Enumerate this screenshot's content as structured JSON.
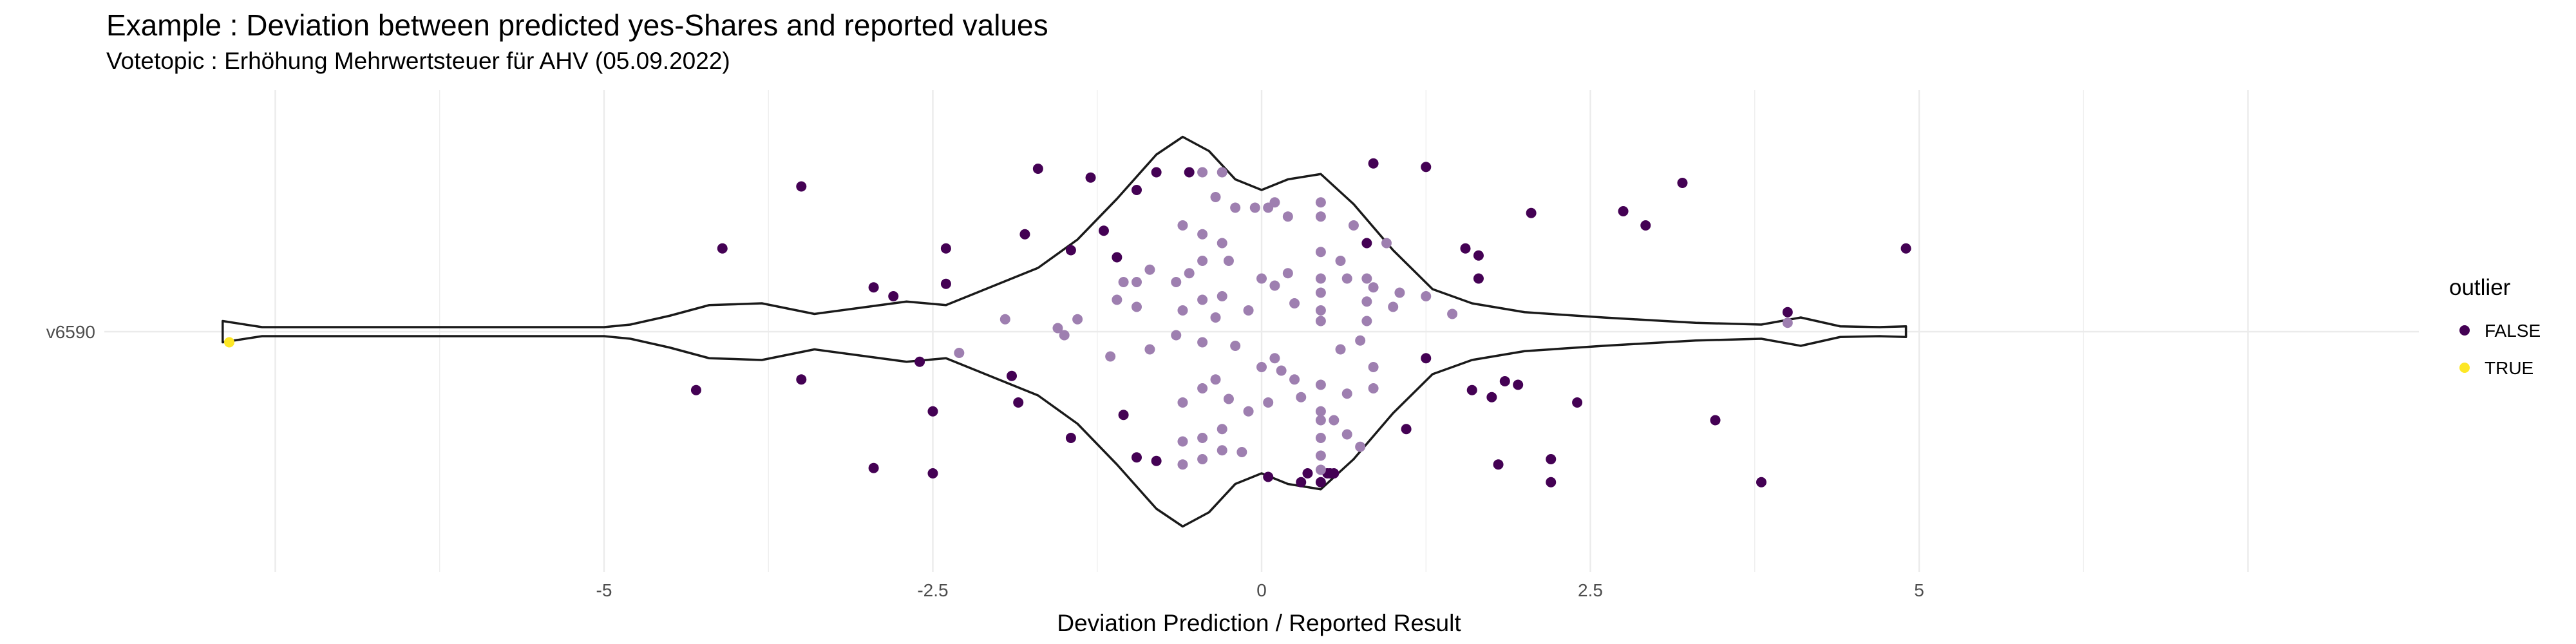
{
  "chart_data": {
    "type": "violin-scatter",
    "title": "Example : Deviation between predicted yes-Shares and reported values",
    "subtitle": "Votetopic : Erhöhung Mehrwertsteuer für AHV (05.09.2022)",
    "xlabel": "Deviation Prediction / Reported Result",
    "ylabel": "",
    "xlim": [
      -8.8,
      8.8
    ],
    "x_ticks": [
      -5,
      -2.5,
      0,
      2.5,
      5
    ],
    "x_tick_labels": [
      "-5",
      "-2.5",
      "0",
      "2.5",
      "5"
    ],
    "categories": [
      "v6590"
    ],
    "grid": true,
    "legend": {
      "title": "outlier",
      "position": "right",
      "entries": [
        {
          "label": "FALSE",
          "color": "#440154"
        },
        {
          "label": "TRUE",
          "color": "#FDE725"
        }
      ]
    },
    "violin": {
      "x_range": [
        -7.9,
        4.9
      ],
      "density_x": [
        -7.9,
        -7.6,
        -7.3,
        -6.0,
        -5.0,
        -4.8,
        -4.5,
        -4.2,
        -3.8,
        -3.4,
        -3.0,
        -2.7,
        -2.4,
        -2.0,
        -1.7,
        -1.4,
        -1.1,
        -0.8,
        -0.6,
        -0.4,
        -0.2,
        0.0,
        0.2,
        0.45,
        0.7,
        1.0,
        1.3,
        1.6,
        2.0,
        2.6,
        3.3,
        3.8,
        4.1,
        4.4,
        4.7,
        4.9
      ],
      "density_y": [
        0.06,
        0.02,
        0.0,
        0.0,
        0.0,
        0.04,
        0.09,
        0.15,
        0.16,
        0.1,
        0.14,
        0.17,
        0.15,
        0.27,
        0.36,
        0.52,
        0.75,
        1.0,
        1.1,
        1.02,
        0.86,
        0.8,
        0.86,
        0.89,
        0.72,
        0.46,
        0.24,
        0.16,
        0.11,
        0.08,
        0.05,
        0.04,
        0.08,
        0.03,
        0.02,
        0.03
      ]
    },
    "series": [
      {
        "name": "FALSE",
        "color": "#440154",
        "points": [
          [
            -3.5,
            0.82
          ],
          [
            -4.1,
            0.47
          ],
          [
            -4.3,
            -0.33
          ],
          [
            -3.5,
            -0.27
          ],
          [
            -2.95,
            0.25
          ],
          [
            -2.8,
            0.2
          ],
          [
            -2.4,
            0.47
          ],
          [
            -2.4,
            0.27
          ],
          [
            -2.6,
            -0.17
          ],
          [
            -2.5,
            -0.45
          ],
          [
            -2.95,
            -0.77
          ],
          [
            -2.5,
            -0.8
          ],
          [
            -1.8,
            0.55
          ],
          [
            -1.9,
            -0.25
          ],
          [
            -1.85,
            -0.4
          ],
          [
            -1.45,
            -0.6
          ],
          [
            -1.45,
            0.46
          ],
          [
            -1.2,
            0.57
          ],
          [
            -1.1,
            0.42
          ],
          [
            -0.95,
            0.8
          ],
          [
            -0.8,
            0.9
          ],
          [
            -0.55,
            0.9
          ],
          [
            -1.7,
            0.92
          ],
          [
            -1.3,
            0.87
          ],
          [
            -1.05,
            -0.47
          ],
          [
            -0.95,
            -0.71
          ],
          [
            -0.8,
            -0.73
          ],
          [
            0.05,
            -0.82
          ],
          [
            0.3,
            -0.85
          ],
          [
            0.35,
            -0.8
          ],
          [
            0.55,
            -0.8
          ],
          [
            0.85,
            0.95
          ],
          [
            1.25,
            0.93
          ],
          [
            0.5,
            -0.8
          ],
          [
            0.52,
            -0.8
          ],
          [
            0.45,
            -0.85
          ],
          [
            0.8,
            0.5
          ],
          [
            1.55,
            0.47
          ],
          [
            1.65,
            0.43
          ],
          [
            1.65,
            0.3
          ],
          [
            1.6,
            -0.33
          ],
          [
            1.75,
            -0.37
          ],
          [
            1.85,
            -0.28
          ],
          [
            1.95,
            -0.3
          ],
          [
            1.25,
            -0.15
          ],
          [
            1.8,
            -0.75
          ],
          [
            2.75,
            0.68
          ],
          [
            2.92,
            0.6
          ],
          [
            3.2,
            0.84
          ],
          [
            2.05,
            0.67
          ],
          [
            2.4,
            -0.4
          ],
          [
            2.2,
            -0.72
          ],
          [
            2.2,
            -0.85
          ],
          [
            3.45,
            -0.5
          ],
          [
            3.8,
            -0.85
          ],
          [
            4.9,
            0.47
          ],
          [
            4.0,
            0.11
          ],
          [
            1.1,
            -0.55
          ]
        ]
      },
      {
        "name": "TRUE",
        "color": "#FDE725",
        "points": [
          [
            -7.85,
            -0.06
          ]
        ]
      },
      {
        "name": "within-violin",
        "color": "#9E7FB0",
        "points": [
          [
            -0.45,
            0.9
          ],
          [
            -0.3,
            0.9
          ],
          [
            -0.35,
            0.76
          ],
          [
            -0.2,
            0.7
          ],
          [
            -0.05,
            0.7
          ],
          [
            0.05,
            0.7
          ],
          [
            0.1,
            0.73
          ],
          [
            0.2,
            0.65
          ],
          [
            0.45,
            0.73
          ],
          [
            0.45,
            0.65
          ],
          [
            -0.6,
            0.6
          ],
          [
            -0.45,
            0.55
          ],
          [
            -0.3,
            0.5
          ],
          [
            -0.25,
            0.4
          ],
          [
            -0.45,
            0.4
          ],
          [
            -0.55,
            0.33
          ],
          [
            -0.65,
            0.28
          ],
          [
            -0.85,
            0.35
          ],
          [
            -0.95,
            0.28
          ],
          [
            -1.05,
            0.28
          ],
          [
            -0.3,
            0.2
          ],
          [
            -0.45,
            0.18
          ],
          [
            -0.6,
            0.12
          ],
          [
            -0.35,
            0.08
          ],
          [
            -0.1,
            0.12
          ],
          [
            0.0,
            0.3
          ],
          [
            0.1,
            0.26
          ],
          [
            0.2,
            0.33
          ],
          [
            0.25,
            0.16
          ],
          [
            0.45,
            0.45
          ],
          [
            0.45,
            0.3
          ],
          [
            0.45,
            0.22
          ],
          [
            0.45,
            0.12
          ],
          [
            0.45,
            0.06
          ],
          [
            0.65,
            0.3
          ],
          [
            0.7,
            0.6
          ],
          [
            0.8,
            0.3
          ],
          [
            0.85,
            0.25
          ],
          [
            0.8,
            0.17
          ],
          [
            0.8,
            0.06
          ],
          [
            0.75,
            -0.05
          ],
          [
            0.6,
            -0.1
          ],
          [
            1.0,
            0.14
          ],
          [
            1.05,
            0.22
          ],
          [
            1.25,
            0.2
          ],
          [
            1.45,
            0.1
          ],
          [
            -1.55,
            0.02
          ],
          [
            -2.3,
            -0.12
          ],
          [
            -1.95,
            0.07
          ],
          [
            -1.5,
            -0.02
          ],
          [
            -1.15,
            -0.14
          ],
          [
            -0.85,
            -0.1
          ],
          [
            -0.65,
            -0.02
          ],
          [
            -0.45,
            -0.06
          ],
          [
            -0.2,
            -0.08
          ],
          [
            0.0,
            -0.2
          ],
          [
            0.15,
            -0.22
          ],
          [
            -0.35,
            -0.27
          ],
          [
            -0.45,
            -0.32
          ],
          [
            -0.6,
            -0.4
          ],
          [
            -0.25,
            -0.38
          ],
          [
            -0.1,
            -0.45
          ],
          [
            0.05,
            -0.4
          ],
          [
            0.45,
            -0.3
          ],
          [
            0.45,
            -0.45
          ],
          [
            0.45,
            -0.5
          ],
          [
            0.45,
            -0.6
          ],
          [
            0.45,
            -0.7
          ],
          [
            0.3,
            -0.37
          ],
          [
            0.25,
            -0.27
          ],
          [
            0.55,
            -0.5
          ],
          [
            0.65,
            -0.58
          ],
          [
            0.75,
            -0.65
          ],
          [
            0.45,
            -0.78
          ],
          [
            -0.3,
            -0.55
          ],
          [
            -0.45,
            -0.6
          ],
          [
            -0.6,
            -0.62
          ],
          [
            -0.3,
            -0.67
          ],
          [
            -0.45,
            -0.72
          ],
          [
            -0.6,
            -0.75
          ],
          [
            -0.15,
            -0.68
          ],
          [
            0.1,
            -0.15
          ],
          [
            -0.95,
            0.14
          ],
          [
            -1.1,
            0.18
          ],
          [
            0.95,
            0.5
          ],
          [
            0.6,
            0.4
          ],
          [
            0.65,
            -0.35
          ],
          [
            0.85,
            -0.2
          ],
          [
            0.85,
            -0.32
          ],
          [
            -1.4,
            0.07
          ],
          [
            4.0,
            0.05
          ]
        ]
      }
    ]
  }
}
